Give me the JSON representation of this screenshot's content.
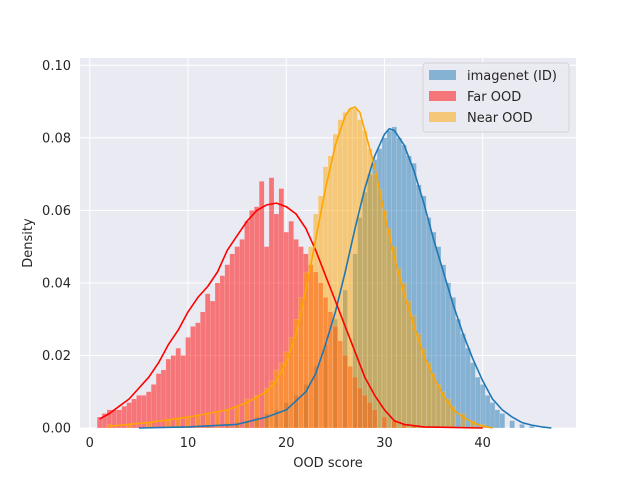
{
  "chart_data": {
    "type": "histogram",
    "title": "",
    "xlabel": "OOD score",
    "ylabel": "Density",
    "xlim": [
      -1,
      49.5
    ],
    "ylim": [
      0,
      0.102
    ],
    "x_ticks": [
      0,
      10,
      20,
      30,
      40
    ],
    "y_ticks": [
      0.0,
      0.02,
      0.04,
      0.06,
      0.08,
      0.1
    ],
    "x_tick_labels": [
      "0",
      "10",
      "20",
      "30",
      "40"
    ],
    "y_tick_labels": [
      "0.00",
      "0.02",
      "0.04",
      "0.06",
      "0.08",
      "0.10"
    ],
    "grid": true,
    "legend_position": "top-right",
    "bin_width": 0.5,
    "series": [
      {
        "name": "imagenet (ID)",
        "color": "#1f77b4",
        "bars": [
          [
            10,
            0.0004
          ],
          [
            12,
            0.0008
          ],
          [
            14,
            0.0012
          ],
          [
            15,
            0.0016
          ],
          [
            16,
            0.002
          ],
          [
            17,
            0.003
          ],
          [
            18,
            0.004
          ],
          [
            19,
            0.005
          ],
          [
            20,
            0.007
          ],
          [
            21,
            0.009
          ],
          [
            22,
            0.012
          ],
          [
            23,
            0.017
          ],
          [
            24,
            0.023
          ],
          [
            25,
            0.03
          ],
          [
            26,
            0.038
          ],
          [
            27,
            0.048
          ],
          [
            27.5,
            0.058
          ],
          [
            28,
            0.065
          ],
          [
            28.5,
            0.07
          ],
          [
            29,
            0.074
          ],
          [
            29.5,
            0.077
          ],
          [
            30,
            0.08
          ],
          [
            30.5,
            0.082
          ],
          [
            31,
            0.083
          ],
          [
            31.5,
            0.08
          ],
          [
            32,
            0.078
          ],
          [
            32.5,
            0.075
          ],
          [
            33,
            0.073
          ],
          [
            33.5,
            0.067
          ],
          [
            34,
            0.064
          ],
          [
            34.5,
            0.058
          ],
          [
            35,
            0.054
          ],
          [
            35.5,
            0.05
          ],
          [
            36,
            0.045
          ],
          [
            36.5,
            0.04
          ],
          [
            37,
            0.036
          ],
          [
            37.5,
            0.03
          ],
          [
            38,
            0.026
          ],
          [
            38.5,
            0.022
          ],
          [
            39,
            0.018
          ],
          [
            39.5,
            0.014
          ],
          [
            40,
            0.012
          ],
          [
            40.5,
            0.009
          ],
          [
            41,
            0.007
          ],
          [
            41.5,
            0.005
          ],
          [
            42,
            0.004
          ],
          [
            43,
            0.002
          ],
          [
            44,
            0.001
          ],
          [
            45,
            0.0005
          ]
        ],
        "kde": [
          [
            5,
            0
          ],
          [
            10,
            0.0003
          ],
          [
            15,
            0.001
          ],
          [
            18,
            0.003
          ],
          [
            20,
            0.005
          ],
          [
            22,
            0.01
          ],
          [
            23,
            0.015
          ],
          [
            24,
            0.023
          ],
          [
            25,
            0.032
          ],
          [
            26,
            0.043
          ],
          [
            27,
            0.055
          ],
          [
            28,
            0.066
          ],
          [
            29,
            0.075
          ],
          [
            30,
            0.081
          ],
          [
            30.5,
            0.0825
          ],
          [
            31,
            0.082
          ],
          [
            32,
            0.078
          ],
          [
            33,
            0.071
          ],
          [
            34,
            0.062
          ],
          [
            35,
            0.052
          ],
          [
            36,
            0.043
          ],
          [
            37,
            0.034
          ],
          [
            38,
            0.026
          ],
          [
            39,
            0.019
          ],
          [
            40,
            0.013
          ],
          [
            41,
            0.008
          ],
          [
            42,
            0.005
          ],
          [
            43,
            0.003
          ],
          [
            44,
            0.0015
          ],
          [
            45,
            0.0008
          ],
          [
            46,
            0.0003
          ],
          [
            47,
            0
          ]
        ]
      },
      {
        "name": "Far OOD",
        "color": "#ff0000",
        "bars": [
          [
            1,
            0.003
          ],
          [
            1.5,
            0.004
          ],
          [
            2,
            0.005
          ],
          [
            2.5,
            0.005
          ],
          [
            3,
            0.005
          ],
          [
            3.5,
            0.006
          ],
          [
            4,
            0.007
          ],
          [
            4.5,
            0.008
          ],
          [
            5,
            0.009
          ],
          [
            5.5,
            0.009
          ],
          [
            6,
            0.01
          ],
          [
            6.5,
            0.012
          ],
          [
            7,
            0.015
          ],
          [
            7.5,
            0.016
          ],
          [
            8,
            0.019
          ],
          [
            8.5,
            0.02
          ],
          [
            9,
            0.022
          ],
          [
            9.5,
            0.02
          ],
          [
            10,
            0.025
          ],
          [
            10.5,
            0.028
          ],
          [
            11,
            0.029
          ],
          [
            11.5,
            0.032
          ],
          [
            12,
            0.037
          ],
          [
            12.5,
            0.035
          ],
          [
            13,
            0.04
          ],
          [
            13.5,
            0.042
          ],
          [
            14,
            0.045
          ],
          [
            14.5,
            0.048
          ],
          [
            15,
            0.05
          ],
          [
            15.5,
            0.052
          ],
          [
            16,
            0.057
          ],
          [
            16.5,
            0.06
          ],
          [
            17,
            0.061
          ],
          [
            17.5,
            0.068
          ],
          [
            18,
            0.05
          ],
          [
            18.5,
            0.069
          ],
          [
            19,
            0.059
          ],
          [
            19.5,
            0.066
          ],
          [
            20,
            0.054
          ],
          [
            20.5,
            0.057
          ],
          [
            21,
            0.052
          ],
          [
            21.5,
            0.05
          ],
          [
            22,
            0.048
          ],
          [
            22.5,
            0.045
          ],
          [
            23,
            0.043
          ],
          [
            23.5,
            0.04
          ],
          [
            24,
            0.036
          ],
          [
            24.5,
            0.032
          ],
          [
            25,
            0.028
          ],
          [
            25.5,
            0.024
          ],
          [
            26,
            0.02
          ],
          [
            26.5,
            0.017
          ],
          [
            27,
            0.014
          ],
          [
            27.5,
            0.011
          ],
          [
            28,
            0.009
          ],
          [
            28.5,
            0.007
          ],
          [
            29,
            0.005
          ],
          [
            30,
            0.003
          ],
          [
            31,
            0.002
          ],
          [
            32,
            0.001
          ],
          [
            33,
            0.0005
          ]
        ],
        "kde": [
          [
            1,
            0.0025
          ],
          [
            2,
            0.004
          ],
          [
            3,
            0.006
          ],
          [
            4,
            0.008
          ],
          [
            5,
            0.011
          ],
          [
            6,
            0.014
          ],
          [
            7,
            0.018
          ],
          [
            8,
            0.023
          ],
          [
            9,
            0.027
          ],
          [
            10,
            0.032
          ],
          [
            11,
            0.036
          ],
          [
            12,
            0.039
          ],
          [
            13,
            0.043
          ],
          [
            14,
            0.049
          ],
          [
            15,
            0.053
          ],
          [
            16,
            0.057
          ],
          [
            17,
            0.06
          ],
          [
            18,
            0.0615
          ],
          [
            19,
            0.062
          ],
          [
            20,
            0.061
          ],
          [
            21,
            0.059
          ],
          [
            22,
            0.055
          ],
          [
            23,
            0.049
          ],
          [
            24,
            0.042
          ],
          [
            25,
            0.035
          ],
          [
            26,
            0.028
          ],
          [
            27,
            0.021
          ],
          [
            28,
            0.014
          ],
          [
            29,
            0.009
          ],
          [
            30,
            0.005
          ],
          [
            31,
            0.002
          ],
          [
            32,
            0.001
          ],
          [
            34,
            0.0003
          ],
          [
            40,
            0
          ]
        ]
      },
      {
        "name": "Near OOD",
        "color": "#ffa500",
        "bars": [
          [
            2,
            0.001
          ],
          [
            4,
            0.0012
          ],
          [
            6,
            0.0015
          ],
          [
            8,
            0.002
          ],
          [
            9,
            0.0025
          ],
          [
            10,
            0.003
          ],
          [
            11,
            0.0035
          ],
          [
            12,
            0.004
          ],
          [
            13,
            0.0045
          ],
          [
            14,
            0.005
          ],
          [
            15,
            0.006
          ],
          [
            16,
            0.008
          ],
          [
            17,
            0.009
          ],
          [
            18,
            0.011
          ],
          [
            18.5,
            0.013
          ],
          [
            19,
            0.016
          ],
          [
            19.5,
            0.018
          ],
          [
            20,
            0.021
          ],
          [
            20.5,
            0.025
          ],
          [
            21,
            0.03
          ],
          [
            21.5,
            0.036
          ],
          [
            22,
            0.043
          ],
          [
            22.5,
            0.05
          ],
          [
            23,
            0.059
          ],
          [
            23.5,
            0.064
          ],
          [
            24,
            0.072
          ],
          [
            24.5,
            0.075
          ],
          [
            25,
            0.081
          ],
          [
            25.5,
            0.085
          ],
          [
            26,
            0.087
          ],
          [
            26.5,
            0.088
          ],
          [
            27,
            0.088
          ],
          [
            27.5,
            0.085
          ],
          [
            28,
            0.082
          ],
          [
            28.5,
            0.077
          ],
          [
            29,
            0.07
          ],
          [
            29.5,
            0.066
          ],
          [
            30,
            0.06
          ],
          [
            30.5,
            0.055
          ],
          [
            31,
            0.05
          ],
          [
            31.5,
            0.044
          ],
          [
            32,
            0.04
          ],
          [
            32.5,
            0.035
          ],
          [
            33,
            0.031
          ],
          [
            33.5,
            0.026
          ],
          [
            34,
            0.022
          ],
          [
            34.5,
            0.018
          ],
          [
            35,
            0.015
          ],
          [
            35.5,
            0.012
          ],
          [
            36,
            0.01
          ],
          [
            36.5,
            0.008
          ],
          [
            37,
            0.006
          ],
          [
            38,
            0.004
          ],
          [
            39,
            0.002
          ],
          [
            40,
            0.001
          ]
        ],
        "kde": [
          [
            2,
            0.0005
          ],
          [
            6,
            0.0015
          ],
          [
            10,
            0.003
          ],
          [
            14,
            0.005
          ],
          [
            16,
            0.007
          ],
          [
            18,
            0.01
          ],
          [
            19,
            0.013
          ],
          [
            20,
            0.018
          ],
          [
            21,
            0.026
          ],
          [
            22,
            0.038
          ],
          [
            23,
            0.052
          ],
          [
            24,
            0.066
          ],
          [
            25,
            0.078
          ],
          [
            26,
            0.086
          ],
          [
            26.5,
            0.088
          ],
          [
            27,
            0.0885
          ],
          [
            27.5,
            0.087
          ],
          [
            28,
            0.082
          ],
          [
            29,
            0.072
          ],
          [
            30,
            0.059
          ],
          [
            31,
            0.047
          ],
          [
            32,
            0.037
          ],
          [
            33,
            0.028
          ],
          [
            34,
            0.02
          ],
          [
            35,
            0.014
          ],
          [
            36,
            0.009
          ],
          [
            37,
            0.005
          ],
          [
            38,
            0.003
          ],
          [
            39,
            0.0015
          ],
          [
            40,
            0.0005
          ],
          [
            41,
            0
          ]
        ]
      }
    ]
  }
}
